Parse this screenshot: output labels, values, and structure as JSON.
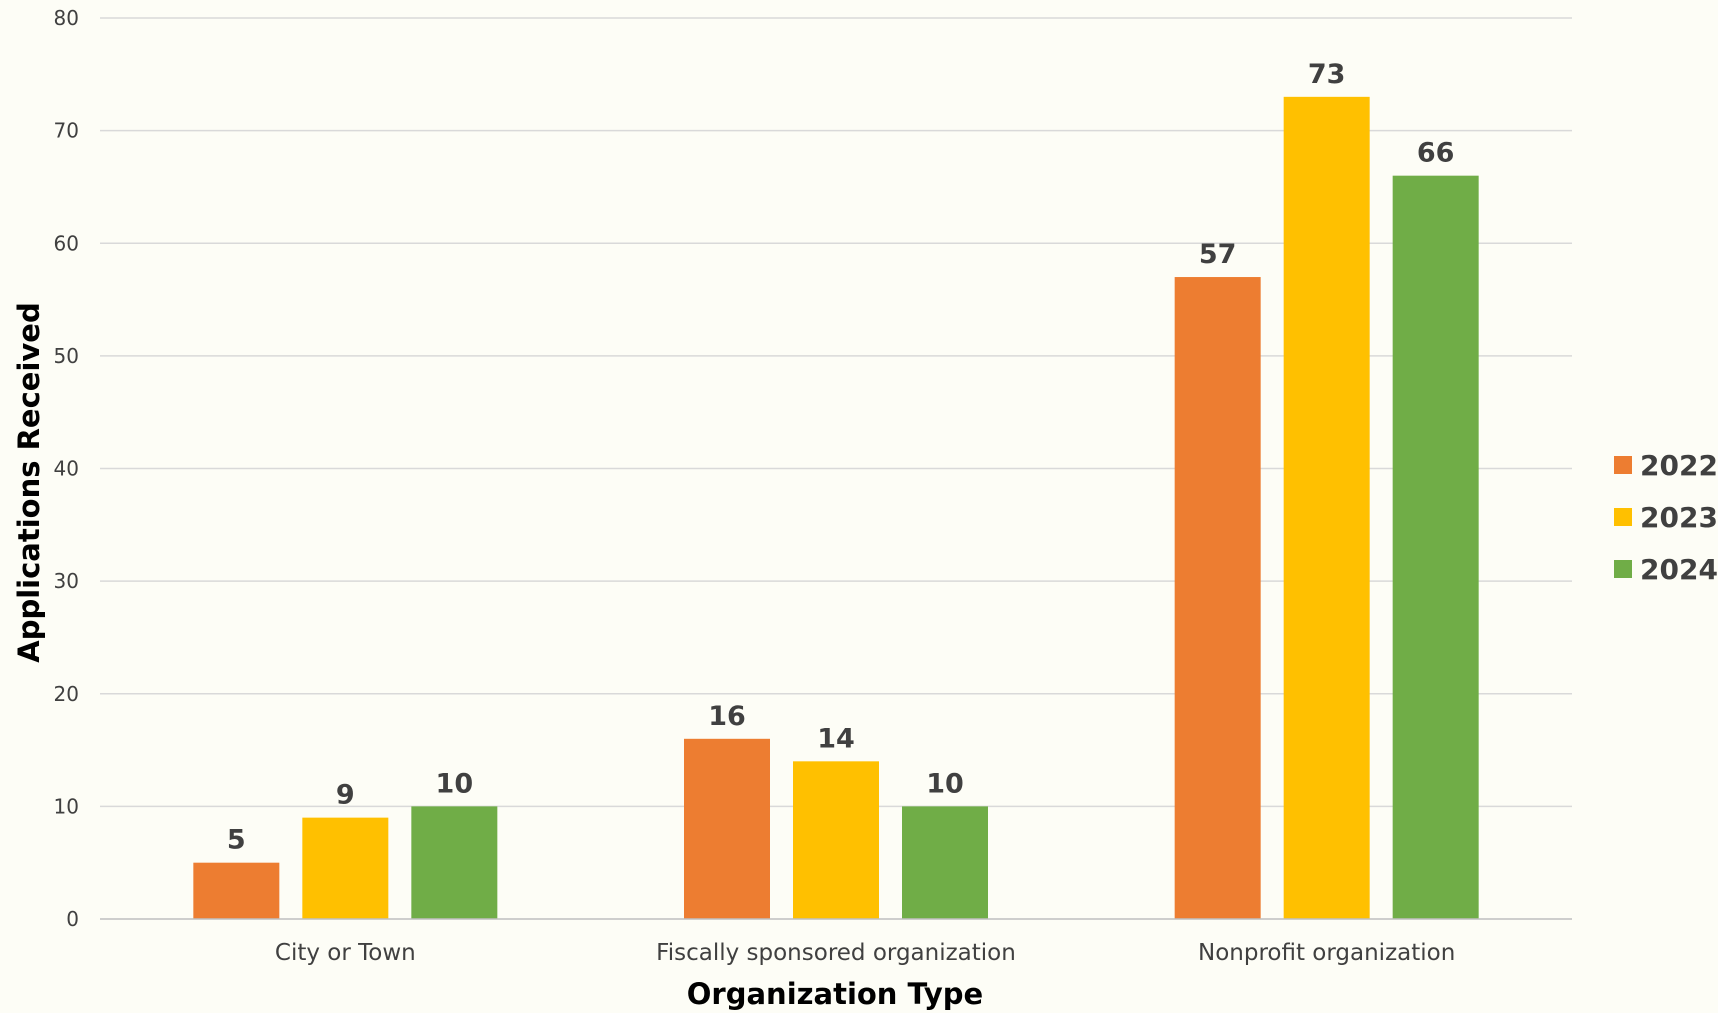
{
  "chart_data": {
    "type": "bar",
    "title": "",
    "xlabel": "Organization Type",
    "ylabel": "Applications Received",
    "categories": [
      "City or Town",
      "Fiscally sponsored organization",
      "Nonprofit organization"
    ],
    "series": [
      {
        "name": "2022",
        "color": "#ed7d31",
        "values": [
          5,
          16,
          57
        ]
      },
      {
        "name": "2023",
        "color": "#ffc000",
        "values": [
          9,
          14,
          73
        ]
      },
      {
        "name": "2024",
        "color": "#70ad47",
        "values": [
          10,
          10,
          66
        ]
      }
    ],
    "ylim": [
      0,
      80
    ],
    "yticks": [
      0,
      10,
      20,
      30,
      40,
      50,
      60,
      70,
      80
    ],
    "grid": true,
    "legend": "right",
    "data_labels": true
  }
}
